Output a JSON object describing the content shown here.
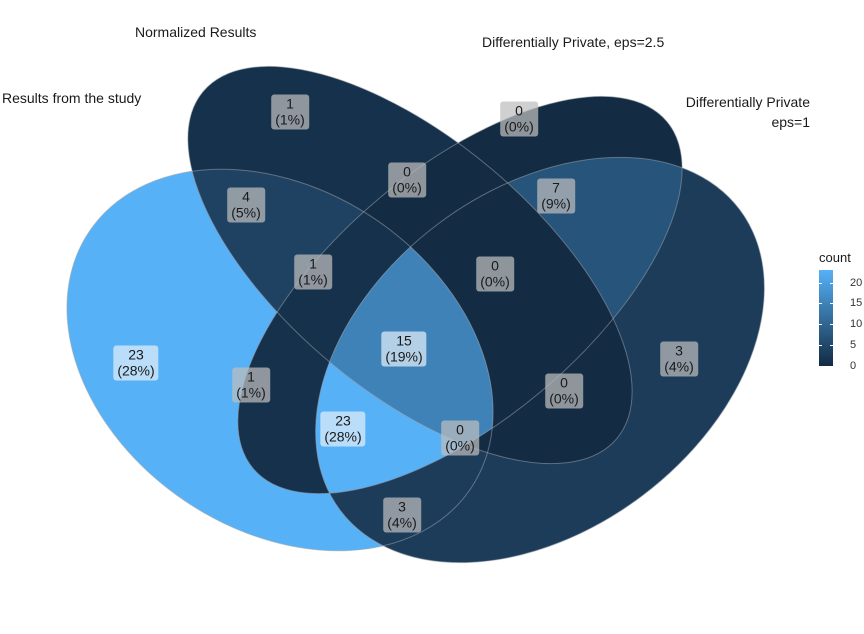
{
  "chart_data": {
    "type": "venn",
    "sets": [
      {
        "name": "Results from the study"
      },
      {
        "name": "Normalized Results"
      },
      {
        "name": "Differentially Private, eps=2.5"
      },
      {
        "name": "Differentially Private\neps=1"
      }
    ],
    "regions": [
      {
        "id": "A",
        "count": "23",
        "pct": "(28%)"
      },
      {
        "id": "B",
        "count": "1",
        "pct": "(1%)"
      },
      {
        "id": "C",
        "count": "0",
        "pct": "(0%)"
      },
      {
        "id": "D",
        "count": "3",
        "pct": "(4%)"
      },
      {
        "id": "AB",
        "count": "4",
        "pct": "(5%)"
      },
      {
        "id": "BC",
        "count": "0",
        "pct": "(0%)"
      },
      {
        "id": "CD",
        "count": "7",
        "pct": "(9%)"
      },
      {
        "id": "AC",
        "count": "1",
        "pct": "(1%)"
      },
      {
        "id": "BD",
        "count": "0",
        "pct": "(0%)"
      },
      {
        "id": "AD",
        "count": "3",
        "pct": "(4%)"
      },
      {
        "id": "ABC",
        "count": "1",
        "pct": "(1%)"
      },
      {
        "id": "BCD",
        "count": "0",
        "pct": "(0%)"
      },
      {
        "id": "ABD",
        "count": "0",
        "pct": "(0%)"
      },
      {
        "id": "ACD",
        "count": "23",
        "pct": "(28%)"
      },
      {
        "id": "ABCD",
        "count": "15",
        "pct": "(19%)"
      }
    ],
    "legend": {
      "title": "count",
      "ticks": [
        "0",
        "5",
        "10",
        "15",
        "20"
      ],
      "range": [
        0,
        23
      ],
      "low_color": "#132b43",
      "high_color": "#56b1f7",
      "placement": "right"
    }
  }
}
